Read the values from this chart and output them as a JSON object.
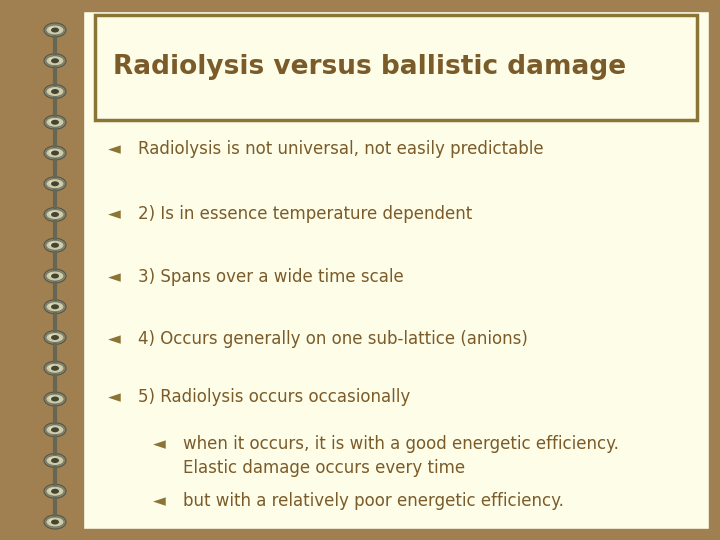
{
  "title": "Radiolysis versus ballistic damage",
  "title_color": "#7B5B2A",
  "title_fontsize": 19,
  "title_box_bg": "#FDFDE8",
  "title_box_edge": "#8B7536",
  "bg_color": "#A08050",
  "content_bg": "#FDFDE8",
  "bullet_color": "#8B7536",
  "text_color": "#7B5B2A",
  "bullet_char": "◄",
  "bullet_fontsize": 12,
  "text_fontsize": 12,
  "bullets": [
    {
      "level": 0,
      "text": "Radiolysis is not universal, not easily predictable"
    },
    {
      "level": 0,
      "text": "2) Is in essence temperature dependent"
    },
    {
      "level": 0,
      "text": "3) Spans over a wide time scale"
    },
    {
      "level": 0,
      "text": "4) Occurs generally on one sub-lattice (anions)"
    },
    {
      "level": 0,
      "text": "5) Radiolysis occurs occasionally"
    },
    {
      "level": 1,
      "text": "when it occurs, it is with a good energetic efficiency.\nElastic damage occurs every time"
    },
    {
      "level": 1,
      "text": "but with a relatively poor energetic efficiency."
    }
  ],
  "figsize": [
    7.2,
    5.4
  ],
  "dpi": 100
}
